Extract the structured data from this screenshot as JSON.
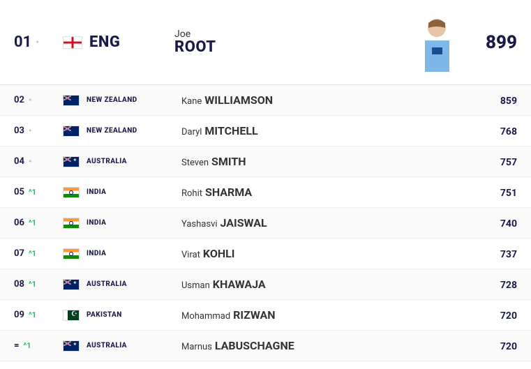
{
  "featured": {
    "rank": "01",
    "delta_type": "none",
    "country_code": "ENG",
    "flag_class": "flag-eng",
    "player_first": "Joe",
    "player_last": "ROOT",
    "rating": "899"
  },
  "rows": [
    {
      "rank": "02",
      "delta_type": "none",
      "delta": "",
      "country": "NEW ZEALAND",
      "flag_class": "flag-nz",
      "first": "Kane",
      "last": "WILLIAMSON",
      "rating": "859"
    },
    {
      "rank": "03",
      "delta_type": "none",
      "delta": "",
      "country": "NEW ZEALAND",
      "flag_class": "flag-nz",
      "first": "Daryl",
      "last": "MITCHELL",
      "rating": "768"
    },
    {
      "rank": "04",
      "delta_type": "none",
      "delta": "",
      "country": "AUSTRALIA",
      "flag_class": "flag-aus",
      "first": "Steven",
      "last": "SMITH",
      "rating": "757"
    },
    {
      "rank": "05",
      "delta_type": "up",
      "delta": "1",
      "country": "INDIA",
      "flag_class": "flag-ind",
      "first": "Rohit",
      "last": "SHARMA",
      "rating": "751"
    },
    {
      "rank": "06",
      "delta_type": "up",
      "delta": "1",
      "country": "INDIA",
      "flag_class": "flag-ind",
      "first": "Yashasvi",
      "last": "JAISWAL",
      "rating": "740"
    },
    {
      "rank": "07",
      "delta_type": "up",
      "delta": "1",
      "country": "INDIA",
      "flag_class": "flag-ind",
      "first": "Virat",
      "last": "KOHLI",
      "rating": "737"
    },
    {
      "rank": "08",
      "delta_type": "up",
      "delta": "1",
      "country": "AUSTRALIA",
      "flag_class": "flag-aus",
      "first": "Usman",
      "last": "KHAWAJA",
      "rating": "728"
    },
    {
      "rank": "09",
      "delta_type": "up",
      "delta": "1",
      "country": "PAKISTAN",
      "flag_class": "flag-pak",
      "first": "Mohammad",
      "last": "RIZWAN",
      "rating": "720"
    },
    {
      "rank": "=",
      "delta_type": "up",
      "delta": "1",
      "country": "AUSTRALIA",
      "flag_class": "flag-aus",
      "first": "Marnus",
      "last": "LABUSCHAGNE",
      "rating": "720"
    }
  ],
  "colors": {
    "primary": "#1a1a4a",
    "up": "#2eb86a",
    "border": "#e5e5e5"
  }
}
